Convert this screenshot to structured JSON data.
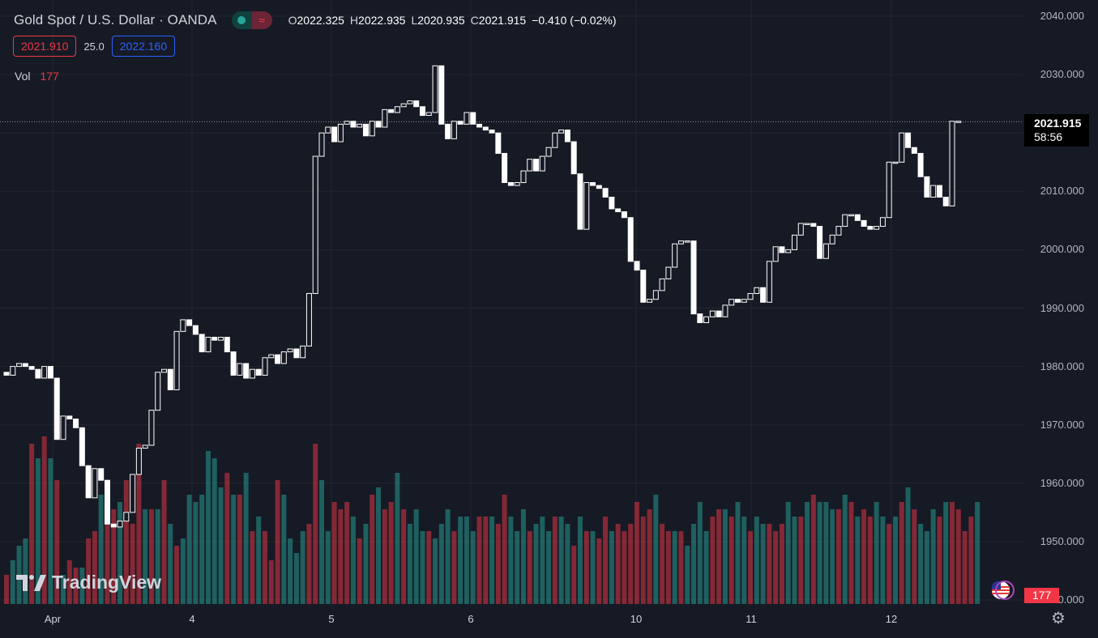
{
  "header": {
    "symbol_title": "Gold Spot / U.S. Dollar · OANDA",
    "status_icon": "market-open-dot-icon",
    "alert_icon": "wave-icon",
    "ohlc": {
      "o_label": "O",
      "o": "2022.325",
      "h_label": "H",
      "h": "2022.935",
      "l_label": "L",
      "l": "2020.935",
      "c_label": "C",
      "c": "2021.915",
      "change": "−0.410 (−0.02%)"
    },
    "bid": "2021.910",
    "spread": "25.0",
    "ask": "2022.160"
  },
  "volume_legend": {
    "label": "Vol",
    "value": "177"
  },
  "watermark": "TradingView",
  "price_axis": {
    "labels": [
      "2040.000",
      "2030.000",
      "2020.000",
      "2010.000",
      "2000.000",
      "1990.000",
      "1980.000",
      "1970.000",
      "1960.000",
      "1950.000",
      "1940.000"
    ],
    "last_price": "2021.915",
    "countdown": "58:56",
    "volume_tag": "177"
  },
  "time_axis": {
    "labels": [
      "Apr",
      "4",
      "5",
      "6",
      "10",
      "11",
      "12"
    ]
  },
  "colors": {
    "background": "#161a25",
    "up_volume": "#26a69a",
    "down_volume": "#f23645",
    "candle": "#ffffff"
  },
  "chart_data": {
    "type": "candlestick",
    "series_symbol": "XAUUSD",
    "y_range": [
      1940,
      2040
    ],
    "candles": [
      [
        1979.0,
        1978.5
      ],
      [
        1978.5,
        1980.0
      ],
      [
        1980.0,
        1980.5
      ],
      [
        1980.5,
        1980.0
      ],
      [
        1980.0,
        1979.5
      ],
      [
        1979.5,
        1978.0
      ],
      [
        1978.0,
        1980.0
      ],
      [
        1980.0,
        1978.0
      ],
      [
        1978.0,
        1967.5
      ],
      [
        1967.5,
        1971.5
      ],
      [
        1971.5,
        1971.0
      ],
      [
        1971.0,
        1969.5
      ],
      [
        1969.5,
        1963.0
      ],
      [
        1963.0,
        1957.5
      ],
      [
        1957.5,
        1962.5
      ],
      [
        1962.5,
        1960.5
      ],
      [
        1960.5,
        1953.0
      ],
      [
        1953.0,
        1952.5
      ],
      [
        1952.5,
        1953.5
      ],
      [
        1953.5,
        1955.0
      ],
      [
        1955.0,
        1961.5
      ],
      [
        1961.5,
        1966.0
      ],
      [
        1966.0,
        1966.5
      ],
      [
        1966.5,
        1972.5
      ],
      [
        1972.5,
        1979.0
      ],
      [
        1979.0,
        1979.5
      ],
      [
        1979.5,
        1976.0
      ],
      [
        1976.0,
        1986.0
      ],
      [
        1986.0,
        1988.0
      ],
      [
        1988.0,
        1987.0
      ],
      [
        1987.0,
        1985.5
      ],
      [
        1985.5,
        1982.5
      ],
      [
        1982.5,
        1985.0
      ],
      [
        1985.0,
        1984.5
      ],
      [
        1984.5,
        1985.0
      ],
      [
        1985.0,
        1982.5
      ],
      [
        1982.5,
        1978.5
      ],
      [
        1978.5,
        1980.5
      ],
      [
        1980.5,
        1978.0
      ],
      [
        1978.0,
        1979.5
      ],
      [
        1979.5,
        1978.5
      ],
      [
        1978.5,
        1981.5
      ],
      [
        1981.5,
        1982.0
      ],
      [
        1982.0,
        1980.5
      ],
      [
        1980.5,
        1982.5
      ],
      [
        1982.5,
        1983.0
      ],
      [
        1983.0,
        1981.5
      ],
      [
        1981.5,
        1983.5
      ],
      [
        1983.5,
        1992.5
      ],
      [
        1992.5,
        2016.0
      ],
      [
        2016.0,
        2020.0
      ],
      [
        2020.0,
        2021.0
      ],
      [
        2021.0,
        2018.5
      ],
      [
        2018.5,
        2021.5
      ],
      [
        2021.5,
        2022.0
      ],
      [
        2022.0,
        2021.0
      ],
      [
        2021.0,
        2021.5
      ],
      [
        2021.5,
        2019.5
      ],
      [
        2019.5,
        2022.0
      ],
      [
        2022.0,
        2021.0
      ],
      [
        2021.0,
        2024.0
      ],
      [
        2024.0,
        2023.5
      ],
      [
        2023.5,
        2024.5
      ],
      [
        2024.5,
        2025.0
      ],
      [
        2025.0,
        2025.5
      ],
      [
        2025.5,
        2024.5
      ],
      [
        2024.5,
        2023.0
      ],
      [
        2023.0,
        2023.5
      ],
      [
        2023.5,
        2031.5
      ],
      [
        2031.5,
        2021.5
      ],
      [
        2021.5,
        2019.0
      ],
      [
        2019.0,
        2022.0
      ],
      [
        2022.0,
        2021.5
      ],
      [
        2021.5,
        2023.5
      ],
      [
        2023.5,
        2021.5
      ],
      [
        2021.5,
        2021.0
      ],
      [
        2021.0,
        2020.5
      ],
      [
        2020.5,
        2020.0
      ],
      [
        2020.0,
        2016.5
      ],
      [
        2016.5,
        2011.5
      ],
      [
        2011.5,
        2011.0
      ],
      [
        2011.0,
        2011.5
      ],
      [
        2011.5,
        2013.5
      ],
      [
        2013.5,
        2015.5
      ],
      [
        2015.5,
        2013.5
      ],
      [
        2013.5,
        2016.0
      ],
      [
        2016.0,
        2017.5
      ],
      [
        2017.5,
        2020.0
      ],
      [
        2020.0,
        2020.5
      ],
      [
        2020.5,
        2018.5
      ],
      [
        2018.5,
        2013.0
      ],
      [
        2013.0,
        2003.5
      ],
      [
        2003.5,
        2011.5
      ],
      [
        2011.5,
        2011.0
      ],
      [
        2011.0,
        2010.5
      ],
      [
        2010.5,
        2009.0
      ],
      [
        2009.0,
        2007.0
      ],
      [
        2007.0,
        2006.5
      ],
      [
        2006.5,
        2005.5
      ],
      [
        2005.5,
        1998.0
      ],
      [
        1998.0,
        1996.5
      ],
      [
        1996.5,
        1991.0
      ],
      [
        1991.0,
        1991.5
      ],
      [
        1991.5,
        1993.0
      ],
      [
        1993.0,
        1995.0
      ],
      [
        1995.0,
        1997.0
      ],
      [
        1997.0,
        2001.0
      ],
      [
        2001.0,
        2001.5
      ],
      [
        2001.5,
        2001.5
      ],
      [
        2001.5,
        1989.0
      ],
      [
        1989.0,
        1987.5
      ],
      [
        1987.5,
        1988.5
      ],
      [
        1988.5,
        1989.5
      ],
      [
        1989.5,
        1988.5
      ],
      [
        1988.5,
        1990.5
      ],
      [
        1990.5,
        1991.5
      ],
      [
        1991.5,
        1991.0
      ],
      [
        1991.0,
        1991.5
      ],
      [
        1991.5,
        1992.5
      ],
      [
        1992.5,
        1993.5
      ],
      [
        1993.5,
        1991.0
      ],
      [
        1991.0,
        1998.0
      ],
      [
        1998.0,
        2000.5
      ],
      [
        2000.5,
        1999.5
      ],
      [
        1999.5,
        2000.0
      ],
      [
        2000.0,
        2002.5
      ],
      [
        2002.5,
        2004.5
      ],
      [
        2004.5,
        2004.5
      ],
      [
        2004.5,
        2004.0
      ],
      [
        2004.0,
        1998.5
      ],
      [
        1998.5,
        2001.0
      ],
      [
        2001.0,
        2002.5
      ],
      [
        2002.5,
        2004.0
      ],
      [
        2004.0,
        2006.0
      ],
      [
        2006.0,
        2006.0
      ],
      [
        2006.0,
        2005.0
      ],
      [
        2005.0,
        2004.0
      ],
      [
        2004.0,
        2003.5
      ],
      [
        2003.5,
        2004.0
      ],
      [
        2004.0,
        2005.5
      ],
      [
        2005.5,
        2015.0
      ],
      [
        2015.0,
        2015.0
      ],
      [
        2015.0,
        2020.0
      ],
      [
        2020.0,
        2017.5
      ],
      [
        2017.5,
        2016.5
      ],
      [
        2016.5,
        2012.5
      ],
      [
        2012.5,
        2009.0
      ],
      [
        2009.0,
        2011.0
      ],
      [
        2011.0,
        2009.0
      ],
      [
        2009.0,
        2007.5
      ],
      [
        2007.5,
        2022.0
      ],
      [
        2022.0,
        2022.0
      ]
    ],
    "volumes": [
      [
        4,
        "down"
      ],
      [
        6,
        "up"
      ],
      [
        8,
        "up"
      ],
      [
        9,
        "up"
      ],
      [
        22,
        "down"
      ],
      [
        20,
        "up"
      ],
      [
        23,
        "down"
      ],
      [
        20,
        "up"
      ],
      [
        17,
        "down"
      ],
      [
        4,
        "up"
      ],
      [
        6,
        "down"
      ],
      [
        5,
        "down"
      ],
      [
        5,
        "up"
      ],
      [
        9,
        "down"
      ],
      [
        10,
        "down"
      ],
      [
        15,
        "up"
      ],
      [
        13,
        "down"
      ],
      [
        13,
        "down"
      ],
      [
        14,
        "up"
      ],
      [
        17,
        "down"
      ],
      [
        11,
        "down"
      ],
      [
        22,
        "down"
      ],
      [
        13,
        "up"
      ],
      [
        13,
        "down"
      ],
      [
        13,
        "up"
      ],
      [
        17,
        "down"
      ],
      [
        11,
        "up"
      ],
      [
        8,
        "down"
      ],
      [
        9,
        "up"
      ],
      [
        15,
        "up"
      ],
      [
        14,
        "up"
      ],
      [
        15,
        "up"
      ],
      [
        21,
        "up"
      ],
      [
        20,
        "up"
      ],
      [
        16,
        "up"
      ],
      [
        18,
        "down"
      ],
      [
        15,
        "up"
      ],
      [
        15,
        "down"
      ],
      [
        18,
        "up"
      ],
      [
        10,
        "down"
      ],
      [
        12,
        "up"
      ],
      [
        10,
        "down"
      ],
      [
        6,
        "down"
      ],
      [
        17,
        "down"
      ],
      [
        15,
        "up"
      ],
      [
        9,
        "up"
      ],
      [
        7,
        "up"
      ],
      [
        10,
        "up"
      ],
      [
        11,
        "down"
      ],
      [
        22,
        "down"
      ],
      [
        17,
        "up"
      ],
      [
        10,
        "up"
      ],
      [
        14,
        "down"
      ],
      [
        13,
        "down"
      ],
      [
        14,
        "down"
      ],
      [
        12,
        "up"
      ],
      [
        9,
        "down"
      ],
      [
        11,
        "up"
      ],
      [
        15,
        "down"
      ],
      [
        16,
        "up"
      ],
      [
        13,
        "down"
      ],
      [
        14,
        "down"
      ],
      [
        18,
        "up"
      ],
      [
        13,
        "down"
      ],
      [
        11,
        "up"
      ],
      [
        13,
        "up"
      ],
      [
        10,
        "up"
      ],
      [
        10,
        "down"
      ],
      [
        9,
        "up"
      ],
      [
        11,
        "up"
      ],
      [
        13,
        "up"
      ],
      [
        10,
        "down"
      ],
      [
        12,
        "up"
      ],
      [
        12,
        "up"
      ],
      [
        10,
        "up"
      ],
      [
        12,
        "down"
      ],
      [
        12,
        "down"
      ],
      [
        12,
        "up"
      ],
      [
        11,
        "down"
      ],
      [
        15,
        "down"
      ],
      [
        12,
        "up"
      ],
      [
        10,
        "up"
      ],
      [
        13,
        "up"
      ],
      [
        10,
        "down"
      ],
      [
        11,
        "up"
      ],
      [
        12,
        "up"
      ],
      [
        10,
        "up"
      ],
      [
        12,
        "down"
      ],
      [
        12,
        "up"
      ],
      [
        11,
        "up"
      ],
      [
        8,
        "down"
      ],
      [
        12,
        "up"
      ],
      [
        10,
        "down"
      ],
      [
        10,
        "up"
      ],
      [
        9,
        "down"
      ],
      [
        12,
        "down"
      ],
      [
        10,
        "up"
      ],
      [
        11,
        "down"
      ],
      [
        10,
        "down"
      ],
      [
        11,
        "down"
      ],
      [
        14,
        "down"
      ],
      [
        12,
        "down"
      ],
      [
        13,
        "down"
      ],
      [
        15,
        "up"
      ],
      [
        11,
        "down"
      ],
      [
        10,
        "down"
      ],
      [
        10,
        "up"
      ],
      [
        10,
        "down"
      ],
      [
        8,
        "up"
      ],
      [
        11,
        "up"
      ],
      [
        14,
        "up"
      ],
      [
        10,
        "up"
      ],
      [
        12,
        "down"
      ],
      [
        13,
        "down"
      ],
      [
        13,
        "up"
      ],
      [
        12,
        "down"
      ],
      [
        14,
        "up"
      ],
      [
        12,
        "up"
      ],
      [
        10,
        "down"
      ],
      [
        12,
        "up"
      ],
      [
        11,
        "up"
      ],
      [
        11,
        "down"
      ],
      [
        10,
        "down"
      ],
      [
        11,
        "down"
      ],
      [
        14,
        "up"
      ],
      [
        12,
        "up"
      ],
      [
        12,
        "down"
      ],
      [
        14,
        "up"
      ],
      [
        15,
        "down"
      ],
      [
        14,
        "up"
      ],
      [
        14,
        "up"
      ],
      [
        13,
        "up"
      ],
      [
        13,
        "down"
      ],
      [
        15,
        "up"
      ],
      [
        14,
        "down"
      ],
      [
        12,
        "up"
      ],
      [
        13,
        "down"
      ],
      [
        12,
        "down"
      ],
      [
        14,
        "up"
      ],
      [
        12,
        "up"
      ],
      [
        11,
        "down"
      ],
      [
        12,
        "up"
      ],
      [
        14,
        "down"
      ],
      [
        16,
        "up"
      ],
      [
        13,
        "down"
      ],
      [
        11,
        "up"
      ],
      [
        10,
        "up"
      ],
      [
        13,
        "up"
      ],
      [
        12,
        "down"
      ],
      [
        14,
        "up"
      ],
      [
        14,
        "down"
      ],
      [
        13,
        "down"
      ],
      [
        10,
        "down"
      ],
      [
        12,
        "down"
      ],
      [
        14,
        "up"
      ]
    ]
  }
}
